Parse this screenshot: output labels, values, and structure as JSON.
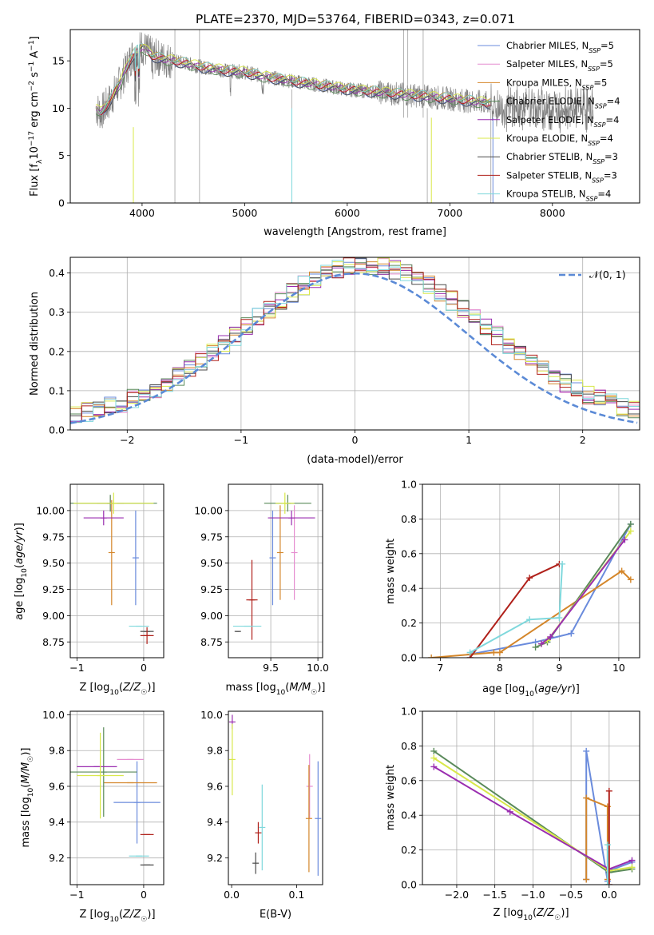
{
  "figure_title": "PLATE=2370, MJD=53764, FIBERID=0343, z=0.071",
  "colors": {
    "Chabrier MILES": "#6a8bdc",
    "Salpeter MILES": "#e68ed0",
    "Kroupa MILES": "#d4862a",
    "Chabrier ELODIE": "#5a8a5a",
    "Salpeter ELODIE": "#9a2db0",
    "Kroupa ELODIE": "#d8e84a",
    "Chabrier STELIB": "#4a4a4a",
    "Salpeter STELIB": "#b0201a",
    "Kroupa STELIB": "#7fd8dc",
    "gaussian": "#5b8ad6",
    "data": "#808080"
  },
  "chart_data": [
    {
      "id": "spectrum",
      "type": "line",
      "title": "PLATE=2370, MJD=53764, FIBERID=0343, z=0.071",
      "xlabel": "wavelength [Angstrom, rest frame]",
      "ylabel": "Flux [f_λ 10^-17 erg cm^-2 s^-1 A^-1]",
      "xlim": [
        3300,
        8850
      ],
      "ylim": [
        0,
        18.3
      ],
      "xticks": [
        4000,
        5000,
        6000,
        7000,
        8000
      ],
      "yticks": [
        0,
        5,
        10,
        15
      ],
      "grid": false,
      "legend_position": "top-right",
      "continuum": {
        "x": [
          3550,
          3600,
          3700,
          3800,
          3900,
          4000,
          4100,
          4200,
          4400,
          4600,
          4800,
          5000,
          5200,
          5500,
          6000,
          6500,
          7000,
          7400
        ],
        "y": [
          10.0,
          9.5,
          11.0,
          13.0,
          15.5,
          16.5,
          15.5,
          15.2,
          14.8,
          14.3,
          14.0,
          13.8,
          13.3,
          12.8,
          12.0,
          11.5,
          11.0,
          10.5
        ]
      },
      "series": [
        {
          "name": "Chabrier MILES",
          "nssp": "5"
        },
        {
          "name": "Salpeter MILES",
          "nssp": "5"
        },
        {
          "name": "Kroupa MILES",
          "nssp": "5"
        },
        {
          "name": "Chabrier ELODIE",
          "nssp": "4"
        },
        {
          "name": "Salpeter ELODIE",
          "nssp": "4"
        },
        {
          "name": "Kroupa ELODIE",
          "nssp": "4"
        },
        {
          "name": "Chabrier STELIB",
          "nssp": "3"
        },
        {
          "name": "Salpeter STELIB",
          "nssp": "3"
        },
        {
          "name": "Kroupa STELIB",
          "nssp": "4"
        }
      ]
    },
    {
      "id": "residuals",
      "type": "line",
      "xlabel": "(data-model)/error",
      "ylabel": "Normed distribution",
      "xlim": [
        -2.5,
        2.5
      ],
      "ylim": [
        0,
        0.44
      ],
      "xticks": [
        -2,
        -1,
        0,
        1,
        2
      ],
      "yticks": [
        0.0,
        0.1,
        0.2,
        0.3,
        0.4
      ],
      "grid": true,
      "legend_position": "top-right",
      "gaussian_label": "𝒩(0, 1)"
    },
    {
      "id": "age_vs_z",
      "type": "scatter",
      "xlabel": "Z [log10(Z/Z☉)]",
      "ylabel": "age [log10(age/yr)]",
      "xlim": [
        -1.1,
        0.3
      ],
      "ylim": [
        8.6,
        10.25
      ],
      "xticks": [
        -1,
        0
      ],
      "yticks": [
        8.75,
        9.0,
        9.25,
        9.5,
        9.75,
        10.0
      ],
      "grid": true,
      "points": [
        {
          "s": "Chabrier MILES",
          "x": -0.12,
          "y": 9.55,
          "xerr": 0.0,
          "yerr": 0.45
        },
        {
          "s": "Salpeter MILES",
          "x": -0.5,
          "y": 10.07,
          "xerr": 0.2,
          "yerr": 0.07
        },
        {
          "s": "Kroupa MILES",
          "x": -0.48,
          "y": 9.6,
          "xerr": 0.0,
          "yerr": 0.5
        },
        {
          "s": "Chabrier ELODIE",
          "x": -0.5,
          "y": 10.07,
          "xerr": 0.7,
          "yerr": 0.08
        },
        {
          "s": "Salpeter ELODIE",
          "x": -0.6,
          "y": 9.93,
          "xerr": 0.3,
          "yerr": 0.07
        },
        {
          "s": "Kroupa ELODIE",
          "x": -0.45,
          "y": 10.07,
          "xerr": 0.6,
          "yerr": 0.1
        },
        {
          "s": "Chabrier STELIB",
          "x": 0.05,
          "y": 8.85,
          "xerr": 0.1,
          "yerr": 0.0
        },
        {
          "s": "Salpeter STELIB",
          "x": 0.05,
          "y": 8.81,
          "xerr": 0.1,
          "yerr": 0.08
        },
        {
          "s": "Kroupa STELIB",
          "x": -0.07,
          "y": 8.9,
          "xerr": 0.15,
          "yerr": 0.0
        }
      ]
    },
    {
      "id": "age_vs_mass",
      "type": "scatter",
      "xlabel": "mass [log10(M/M☉)]",
      "ylabel": "",
      "xlim": [
        9.05,
        10.05
      ],
      "ylim": [
        8.6,
        10.25
      ],
      "xticks": [
        9.5,
        10.0
      ],
      "yticks": [
        8.75,
        9.0,
        9.25,
        9.5,
        9.75,
        10.0
      ],
      "grid": true,
      "points": [
        {
          "s": "Chabrier MILES",
          "x": 9.52,
          "y": 9.55,
          "xerr": 0.0,
          "yerr": 0.45
        },
        {
          "s": "Salpeter MILES",
          "x": 9.75,
          "y": 9.6,
          "xerr": 0.0,
          "yerr": 0.45
        },
        {
          "s": "Kroupa MILES",
          "x": 9.6,
          "y": 9.6,
          "xerr": 0.0,
          "yerr": 0.45
        },
        {
          "s": "Chabrier ELODIE",
          "x": 9.68,
          "y": 10.07,
          "xerr": 0.25,
          "yerr": 0.08
        },
        {
          "s": "Salpeter ELODIE",
          "x": 9.72,
          "y": 9.93,
          "xerr": 0.25,
          "yerr": 0.07
        },
        {
          "s": "Kroupa ELODIE",
          "x": 9.65,
          "y": 10.07,
          "xerr": 0.1,
          "yerr": 0.1
        },
        {
          "s": "Chabrier STELIB",
          "x": 9.15,
          "y": 8.85,
          "xerr": 0.02,
          "yerr": 0.0
        },
        {
          "s": "Salpeter STELIB",
          "x": 9.3,
          "y": 9.15,
          "xerr": 0.06,
          "yerr": 0.38
        },
        {
          "s": "Kroupa STELIB",
          "x": 9.25,
          "y": 8.9,
          "xerr": 0.15,
          "yerr": 0.0
        }
      ]
    },
    {
      "id": "mass_weight_vs_age",
      "type": "line",
      "xlabel": "age  [log10(age/yr)]",
      "ylabel": "mass weight",
      "xlim": [
        6.7,
        10.35
      ],
      "ylim": [
        0,
        1.0
      ],
      "xticks": [
        7,
        8,
        9,
        10
      ],
      "yticks": [
        0.0,
        0.2,
        0.4,
        0.6,
        0.8,
        1.0
      ],
      "grid": true,
      "series": [
        {
          "s": "Chabrier MILES",
          "x": [
            7.5,
            8.6,
            9.2,
            10.2
          ],
          "y": [
            0.02,
            0.09,
            0.14,
            0.77
          ]
        },
        {
          "s": "Kroupa MILES",
          "x": [
            6.85,
            7.9,
            8.0,
            10.05,
            10.2
          ],
          "y": [
            0.0,
            0.03,
            0.03,
            0.5,
            0.45
          ]
        },
        {
          "s": "Chabrier ELODIE",
          "x": [
            8.6,
            8.8,
            10.2
          ],
          "y": [
            0.06,
            0.09,
            0.77
          ]
        },
        {
          "s": "Kroupa ELODIE",
          "x": [
            8.7,
            8.8,
            10.2
          ],
          "y": [
            0.08,
            0.1,
            0.73
          ]
        },
        {
          "s": "Salpeter ELODIE",
          "x": [
            8.7,
            8.85,
            10.1
          ],
          "y": [
            0.08,
            0.12,
            0.68
          ]
        },
        {
          "s": "Salpeter STELIB",
          "x": [
            7.5,
            8.5,
            9.0
          ],
          "y": [
            0.0,
            0.46,
            0.54
          ]
        },
        {
          "s": "Kroupa STELIB",
          "x": [
            7.5,
            8.5,
            9.0,
            9.05
          ],
          "y": [
            0.03,
            0.22,
            0.23,
            0.54
          ]
        }
      ]
    },
    {
      "id": "mass_vs_z",
      "type": "scatter",
      "xlabel": "Z [log10(Z/Z☉)]",
      "ylabel": "mass [log10(M/M☉)]",
      "xlim": [
        -1.1,
        0.3
      ],
      "ylim": [
        9.05,
        10.02
      ],
      "xticks": [
        -1,
        0
      ],
      "yticks": [
        9.2,
        9.4,
        9.6,
        9.8,
        10.0
      ],
      "grid": true,
      "points": [
        {
          "s": "Chabrier MILES",
          "x": -0.1,
          "y": 9.51,
          "xerr": 0.35,
          "yerr": 0.23
        },
        {
          "s": "Salpeter MILES",
          "x": -0.2,
          "y": 9.75,
          "xerr": 0.2,
          "yerr": 0.0
        },
        {
          "s": "Kroupa MILES",
          "x": -0.2,
          "y": 9.62,
          "xerr": 0.4,
          "yerr": 0.0
        },
        {
          "s": "Chabrier ELODIE",
          "x": -0.6,
          "y": 9.68,
          "xerr": 0.5,
          "yerr": 0.25
        },
        {
          "s": "Salpeter ELODIE",
          "x": -0.7,
          "y": 9.71,
          "xerr": 0.3,
          "yerr": 0.0
        },
        {
          "s": "Kroupa ELODIE",
          "x": -0.65,
          "y": 9.66,
          "xerr": 0.35,
          "yerr": 0.24
        },
        {
          "s": "Chabrier STELIB",
          "x": 0.05,
          "y": 9.16,
          "xerr": 0.1,
          "yerr": 0.0
        },
        {
          "s": "Salpeter STELIB",
          "x": 0.05,
          "y": 9.33,
          "xerr": 0.1,
          "yerr": 0.0
        },
        {
          "s": "Kroupa STELIB",
          "x": -0.07,
          "y": 9.21,
          "xerr": 0.15,
          "yerr": 0.0
        }
      ]
    },
    {
      "id": "mass_vs_ebv",
      "type": "scatter",
      "xlabel": "E(B-V)",
      "ylabel": "",
      "xlim": [
        -0.005,
        0.14
      ],
      "ylim": [
        9.05,
        10.02
      ],
      "xticks": [
        0.0,
        0.1
      ],
      "yticks": [
        9.2,
        9.4,
        9.6,
        9.8,
        10.0
      ],
      "grid": false,
      "points": [
        {
          "s": "Chabrier MILES",
          "x": 0.133,
          "y": 9.42,
          "xerr": 0.0,
          "yerr": 0.32
        },
        {
          "s": "Salpeter MILES",
          "x": 0.12,
          "y": 9.6,
          "xerr": 0.0,
          "yerr": 0.18
        },
        {
          "s": "Kroupa MILES",
          "x": 0.119,
          "y": 9.42,
          "xerr": 0.0,
          "yerr": 0.3
        },
        {
          "s": "Salpeter ELODIE",
          "x": 0.001,
          "y": 9.96,
          "xerr": 0.0,
          "yerr": 0.04
        },
        {
          "s": "Kroupa ELODIE",
          "x": 0.001,
          "y": 9.75,
          "xerr": 0.0,
          "yerr": 0.2
        },
        {
          "s": "Chabrier STELIB",
          "x": 0.037,
          "y": 9.17,
          "xerr": 0.0,
          "yerr": 0.06
        },
        {
          "s": "Salpeter STELIB",
          "x": 0.041,
          "y": 9.34,
          "xerr": 0.0,
          "yerr": 0.06
        },
        {
          "s": "Kroupa STELIB",
          "x": 0.047,
          "y": 9.37,
          "xerr": 0.0,
          "yerr": 0.24
        }
      ]
    },
    {
      "id": "mass_weight_vs_z",
      "type": "line",
      "xlabel": "Z [log10(Z/Z☉)]",
      "ylabel": "mass weight",
      "xlim": [
        -2.45,
        0.4
      ],
      "ylim": [
        0,
        1.0
      ],
      "xticks": [
        -2.0,
        -1.5,
        -1.0,
        -0.5,
        0.0
      ],
      "yticks": [
        0.0,
        0.2,
        0.4,
        0.6,
        0.8,
        1.0
      ],
      "grid": true,
      "series": [
        {
          "s": "Chabrier MILES",
          "x": [
            -0.3,
            -0.3,
            -0.02,
            0.0,
            0.3
          ],
          "y": [
            0.03,
            0.77,
            0.02,
            0.08,
            0.13
          ]
        },
        {
          "s": "Kroupa MILES",
          "x": [
            -0.3,
            -0.3,
            -0.02,
            -0.02
          ],
          "y": [
            0.03,
            0.5,
            0.45,
            0.03
          ]
        },
        {
          "s": "Chabrier ELODIE",
          "x": [
            -2.3,
            0.0,
            0.3
          ],
          "y": [
            0.77,
            0.07,
            0.09
          ]
        },
        {
          "s": "Kroupa ELODIE",
          "x": [
            -2.3,
            0.0,
            0.3
          ],
          "y": [
            0.73,
            0.08,
            0.1
          ]
        },
        {
          "s": "Salpeter ELODIE",
          "x": [
            -2.3,
            -1.3,
            0.0,
            0.3
          ],
          "y": [
            0.68,
            0.42,
            0.09,
            0.14
          ]
        },
        {
          "s": "Salpeter STELIB",
          "x": [
            0.0,
            0.0
          ],
          "y": [
            0.0,
            0.54
          ]
        },
        {
          "s": "Kroupa STELIB",
          "x": [
            -0.02,
            -0.02
          ],
          "y": [
            0.0,
            0.23
          ]
        }
      ]
    }
  ]
}
